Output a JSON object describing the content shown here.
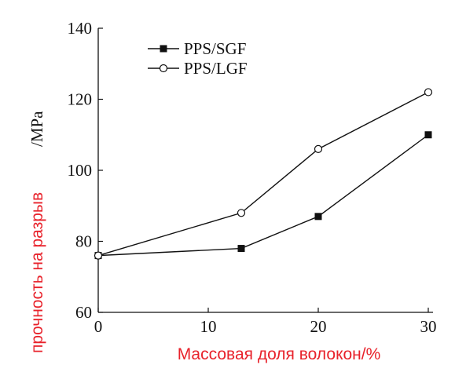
{
  "chart_data": {
    "type": "line",
    "xlabel": "Массовая доля волокон/%",
    "ylabel": "прочность на разрыв",
    "ylabel_unit": "/MPa",
    "xlim": [
      0,
      30
    ],
    "ylim": [
      60,
      140
    ],
    "xticks": [
      0,
      10,
      20,
      30
    ],
    "yticks": [
      60,
      80,
      100,
      120,
      140
    ],
    "grid": false,
    "legend_position": "top-left",
    "series": [
      {
        "name": "PPS/SGF",
        "marker": "filled-square",
        "color": "#111111",
        "x": [
          0,
          13,
          20,
          30
        ],
        "y": [
          76,
          78,
          87,
          110
        ]
      },
      {
        "name": "PPS/LGF",
        "marker": "open-circle",
        "color": "#111111",
        "x": [
          0,
          13,
          20,
          30
        ],
        "y": [
          76,
          88,
          106,
          122
        ]
      }
    ],
    "label_color": "#e8222b"
  }
}
